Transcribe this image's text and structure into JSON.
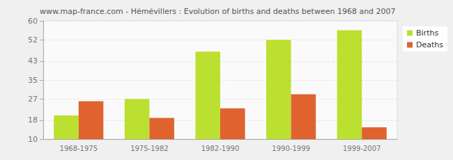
{
  "chart_data": {
    "type": "bar",
    "title": "www.map-france.com - Hémévillers : Evolution of births and deaths between 1968 and 2007",
    "categories": [
      "1968-1975",
      "1975-1982",
      "1982-1990",
      "1990-1999",
      "1999-2007"
    ],
    "series": [
      {
        "name": "Births",
        "color": "#bbe02f",
        "values": [
          20,
          27,
          47,
          52,
          56
        ]
      },
      {
        "name": "Deaths",
        "color": "#e0632f",
        "values": [
          26,
          19,
          23,
          29,
          15
        ]
      }
    ],
    "ylim": [
      10,
      60
    ],
    "yticks": [
      10,
      18,
      27,
      35,
      43,
      52,
      60
    ],
    "grid": true,
    "legend": "upper right"
  }
}
